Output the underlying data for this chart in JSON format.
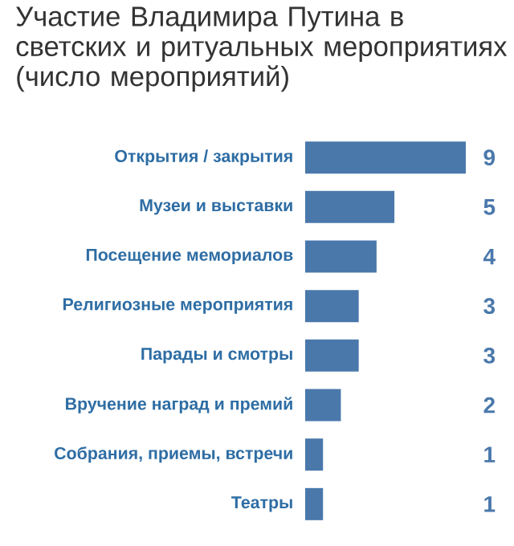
{
  "chart_data": {
    "type": "bar",
    "orientation": "horizontal",
    "title": "Участие Владимира Путина в светских и ритуальных мероприятиях (число мероприятий)",
    "categories": [
      "Открытия / закрытия",
      "Музеи и выставки",
      "Посещение мемориалов",
      "Религиозные мероприятия",
      "Парады и смотры",
      "Вручение наград и премий",
      "Собрания, приемы, встречи",
      "Театры"
    ],
    "values": [
      9,
      5,
      4,
      3,
      3,
      2,
      1,
      1
    ],
    "color": "#4a78ab",
    "data_labels": true
  }
}
